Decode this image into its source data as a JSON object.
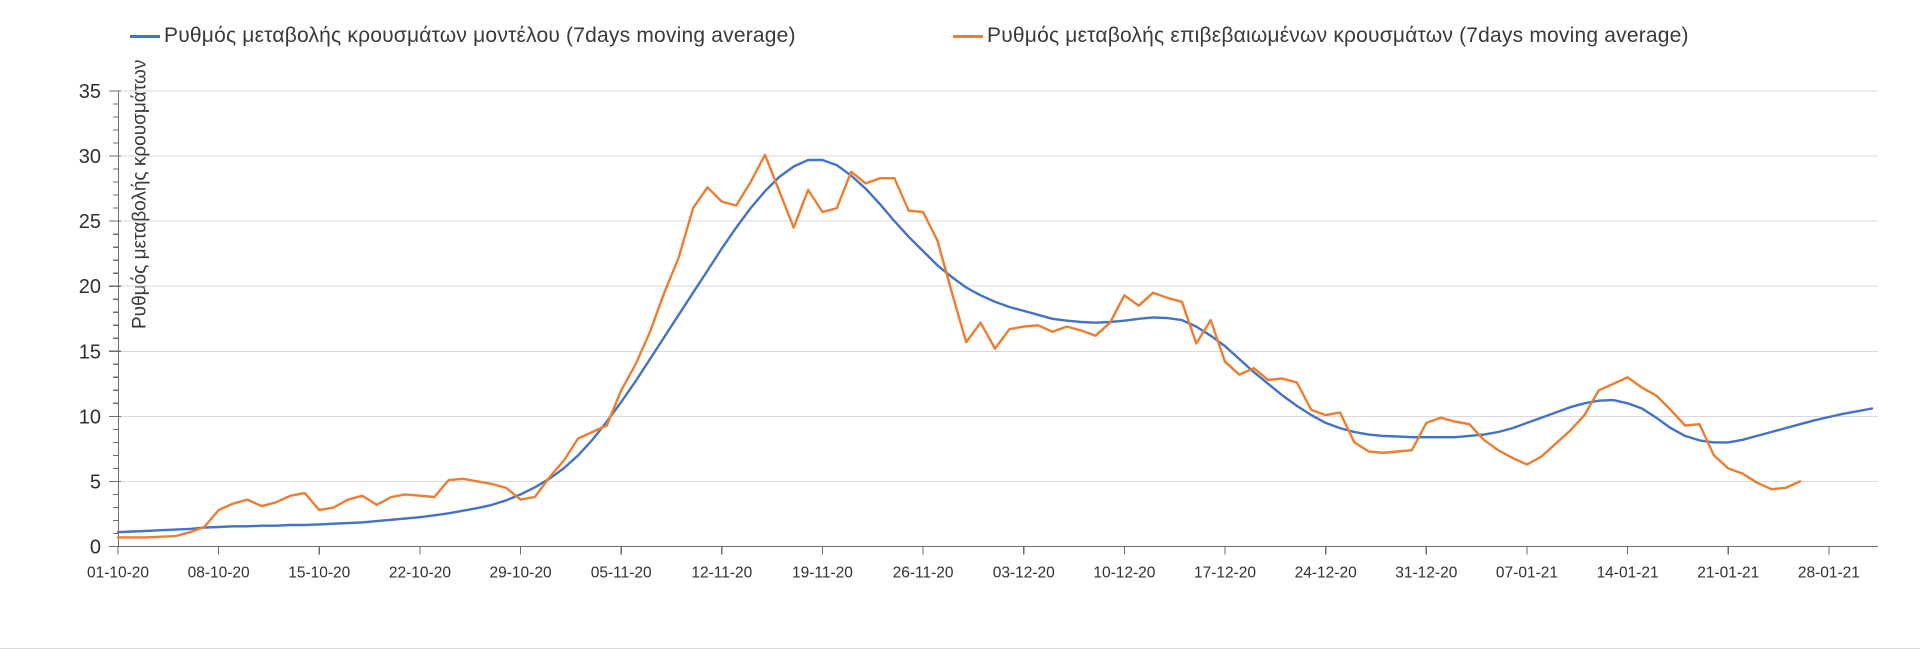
{
  "chart_data": {
    "type": "line",
    "title": "",
    "xlabel": "",
    "ylabel": "Ρυθμός μεταβολής κρουσμάτων",
    "ylim": [
      0,
      35
    ],
    "y_ticks": [
      0,
      5,
      10,
      15,
      20,
      25,
      30,
      35
    ],
    "y_minor_tick_step": 1,
    "grid": "horizontal-major",
    "legend_position": "top",
    "x_start_date": "01-10-20",
    "x_tick_interval_days": 7,
    "x_tick_labels": [
      "01-10-20",
      "08-10-20",
      "15-10-20",
      "22-10-20",
      "29-10-20",
      "05-11-20",
      "12-11-20",
      "19-11-20",
      "26-11-20",
      "03-12-20",
      "10-12-20",
      "17-12-20",
      "24-12-20",
      "31-12-20",
      "07-01-21",
      "14-01-21",
      "21-01-21",
      "28-01-21"
    ],
    "series": [
      {
        "name": "Ρυθμός μεταβολής κρουσμάτων μοντέλου (7days moving average)",
        "color": "#4472C4",
        "cadence": "daily",
        "values": [
          1.1,
          1.15,
          1.2,
          1.25,
          1.3,
          1.35,
          1.45,
          1.5,
          1.55,
          1.55,
          1.6,
          1.6,
          1.65,
          1.65,
          1.7,
          1.75,
          1.8,
          1.85,
          1.95,
          2.05,
          2.15,
          2.25,
          2.4,
          2.55,
          2.75,
          2.95,
          3.2,
          3.55,
          4.0,
          4.55,
          5.2,
          6.0,
          7.0,
          8.2,
          9.6,
          11.1,
          12.7,
          14.4,
          16.1,
          17.8,
          19.5,
          21.2,
          22.9,
          24.5,
          26.0,
          27.3,
          28.4,
          29.2,
          29.7,
          29.7,
          29.3,
          28.5,
          27.5,
          26.3,
          25.0,
          23.8,
          22.7,
          21.6,
          20.7,
          19.9,
          19.3,
          18.8,
          18.4,
          18.1,
          17.8,
          17.5,
          17.35,
          17.25,
          17.2,
          17.25,
          17.35,
          17.5,
          17.6,
          17.55,
          17.4,
          16.9,
          16.2,
          15.4,
          14.4,
          13.4,
          12.5,
          11.6,
          10.8,
          10.1,
          9.5,
          9.1,
          8.8,
          8.6,
          8.5,
          8.45,
          8.4,
          8.4,
          8.4,
          8.4,
          8.5,
          8.6,
          8.8,
          9.1,
          9.5,
          9.9,
          10.3,
          10.7,
          11.0,
          11.2,
          11.25,
          11.0,
          10.6,
          9.9,
          9.1,
          8.5,
          8.15,
          8.0,
          8.0,
          8.2,
          8.5,
          8.8,
          9.1,
          9.4,
          9.7,
          9.95,
          10.2,
          10.4,
          10.6
        ]
      },
      {
        "name": "Ρυθμός μεταβολής επιβεβαιωμένων κρουσμάτων (7days moving average)",
        "color": "#ED7D31",
        "cadence": "daily",
        "values": [
          0.7,
          0.7,
          0.7,
          0.75,
          0.8,
          1.1,
          1.5,
          2.8,
          3.3,
          3.6,
          3.1,
          3.4,
          3.9,
          4.1,
          2.8,
          3.0,
          3.6,
          3.9,
          3.2,
          3.8,
          4.0,
          3.9,
          3.8,
          5.1,
          5.2,
          5.0,
          4.8,
          4.5,
          3.6,
          3.8,
          5.3,
          6.6,
          8.3,
          8.8,
          9.3,
          12.0,
          14.0,
          16.5,
          19.5,
          22.2,
          26.0,
          27.6,
          26.5,
          26.2,
          28.0,
          30.1,
          27.3,
          24.5,
          27.4,
          25.7,
          26.0,
          28.8,
          27.9,
          28.3,
          28.3,
          25.8,
          25.7,
          23.5,
          19.5,
          15.7,
          17.2,
          15.2,
          16.7,
          16.9,
          17.0,
          16.5,
          16.9,
          16.6,
          16.2,
          17.2,
          19.3,
          18.5,
          19.5,
          19.1,
          18.8,
          15.6,
          17.4,
          14.2,
          13.2,
          13.7,
          12.8,
          12.9,
          12.6,
          10.5,
          10.1,
          10.3,
          8.0,
          7.3,
          7.2,
          7.3,
          7.4,
          9.5,
          9.9,
          9.6,
          9.4,
          8.2,
          7.4,
          6.8,
          6.3,
          6.9,
          7.9,
          8.9,
          10.1,
          12.0,
          12.5,
          13.0,
          12.2,
          11.6,
          10.5,
          9.3,
          9.4,
          7.0,
          6.0,
          5.6,
          4.9,
          4.4,
          4.5,
          5.0
        ]
      }
    ]
  },
  "colors": {
    "axis": "#6e6e6e",
    "grid": "#dadada",
    "tick_label": "#303030",
    "background": "#ffffff"
  }
}
